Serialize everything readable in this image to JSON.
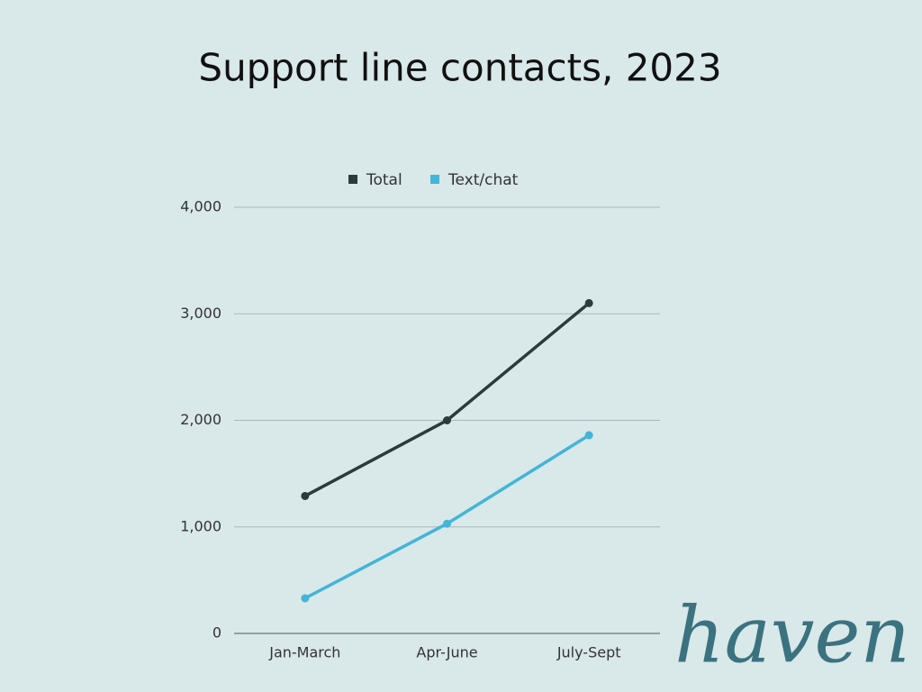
{
  "chart_data": {
    "type": "line",
    "title": "Support line contacts, 2023",
    "categories": [
      "Jan-March",
      "Apr-June",
      "July-Sept"
    ],
    "series": [
      {
        "name": "Total",
        "color": "#2b3b3c",
        "values": [
          1290,
          2000,
          3100
        ]
      },
      {
        "name": "Text/chat",
        "color": "#43b5d8",
        "values": [
          330,
          1030,
          1860
        ]
      }
    ],
    "ylim": [
      0,
      4000
    ],
    "yticks": [
      0,
      {
        "value": 1000,
        "label": "1,000"
      },
      {
        "value": 2000,
        "label": "2,000"
      },
      {
        "value": 3000,
        "label": "3,000"
      },
      {
        "value": 4000,
        "label": "4,000"
      }
    ],
    "grid": true,
    "legend": "top"
  },
  "logo": "haven"
}
